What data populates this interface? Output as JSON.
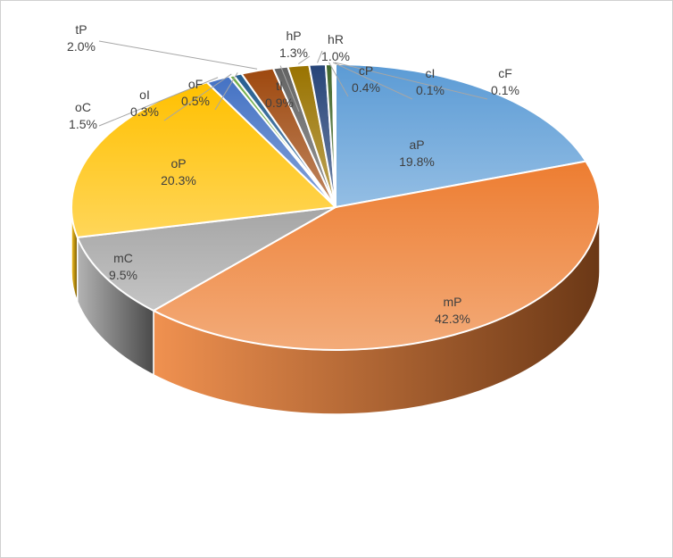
{
  "chart_data": {
    "type": "pie",
    "style": "3d-exploded-none",
    "title": "",
    "legend": "none",
    "slices": [
      {
        "label": "aP",
        "value": 19.8,
        "display": "19.8%",
        "color": "#5b9bd5"
      },
      {
        "label": "mP",
        "value": 42.3,
        "display": "42.3%",
        "color": "#ed7d31"
      },
      {
        "label": "mC",
        "value": 9.5,
        "display": "9.5%",
        "color": "#a5a5a5"
      },
      {
        "label": "oP",
        "value": 20.3,
        "display": "20.3%",
        "color": "#ffc000"
      },
      {
        "label": "oC",
        "value": 1.5,
        "display": "1.5%",
        "color": "#4472c4"
      },
      {
        "label": "oI",
        "value": 0.3,
        "display": "0.3%",
        "color": "#70ad47"
      },
      {
        "label": "oF",
        "value": 0.5,
        "display": "0.5%",
        "color": "#255e91"
      },
      {
        "label": "tP",
        "value": 2.0,
        "display": "2.0%",
        "color": "#9e480e"
      },
      {
        "label": "tI",
        "value": 0.9,
        "display": "0.9%",
        "color": "#636363"
      },
      {
        "label": "hP",
        "value": 1.3,
        "display": "1.3%",
        "color": "#997300"
      },
      {
        "label": "hR",
        "value": 1.0,
        "display": "1.0%",
        "color": "#264478"
      },
      {
        "label": "cP",
        "value": 0.4,
        "display": "0.4%",
        "color": "#43682b"
      },
      {
        "label": "cI",
        "value": 0.1,
        "display": "0.1%",
        "color": "#7cafdd"
      },
      {
        "label": "cF",
        "value": 0.1,
        "display": "0.1%",
        "color": "#f1975a"
      }
    ]
  }
}
